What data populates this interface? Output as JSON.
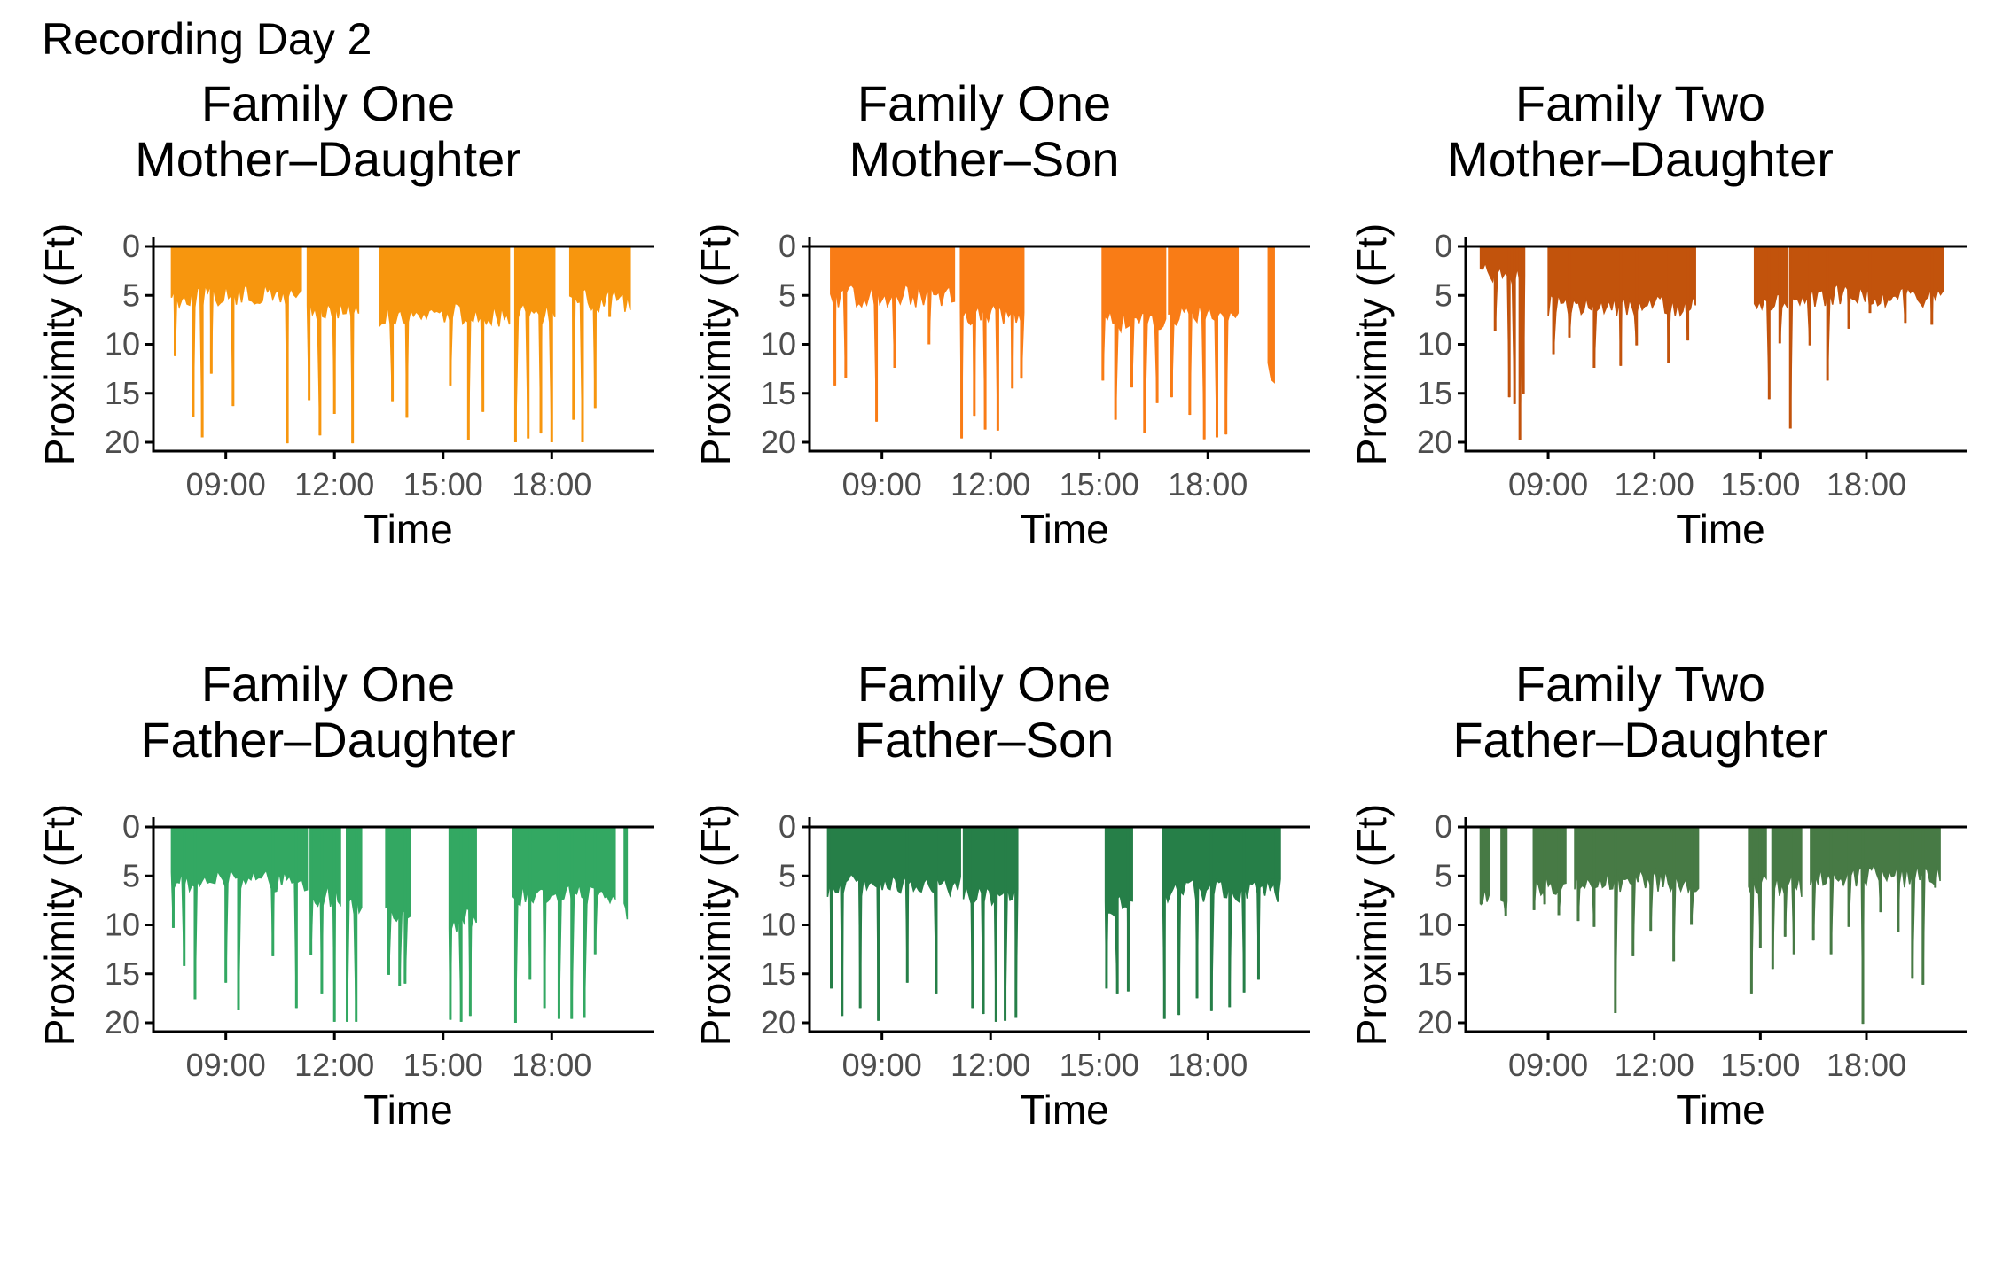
{
  "page_title": "Recording Day 2",
  "chart_data": [
    {
      "type": "bar",
      "family": "Family One",
      "pair": "Mother–Daughter",
      "xlabel": "Time",
      "ylabel": "Proximity (Ft)",
      "x_ticks": [
        "09:00",
        "12:00",
        "15:00",
        "18:00"
      ],
      "x_range": [
        "07:00",
        "20:50"
      ],
      "y_ticks": [
        0,
        5,
        10,
        15,
        20
      ],
      "ylim": [
        0,
        21
      ],
      "y_reversed": true,
      "color": "#F7960E",
      "segments": [
        {
          "start": "07:30",
          "end": "11:05",
          "base": 5.0,
          "spikes": [
            [
              7.6,
              11.2
            ],
            [
              8.1,
              17.4
            ],
            [
              8.35,
              19.5
            ],
            [
              8.6,
              13
            ],
            [
              9.2,
              16.3
            ],
            [
              10.7,
              20.1
            ]
          ]
        },
        {
          "start": "11:15",
          "end": "12:40",
          "base": 6.5,
          "spikes": [
            [
              11.3,
              15.7
            ],
            [
              11.6,
              19.3
            ],
            [
              12.0,
              17.1
            ],
            [
              12.5,
              20.1
            ]
          ]
        },
        {
          "start": "13:15",
          "end": "16:50",
          "base": 7.0,
          "spikes": [
            [
              13.6,
              15.8
            ],
            [
              14.0,
              17.5
            ],
            [
              15.2,
              14.2
            ],
            [
              15.7,
              19.8
            ],
            [
              16.1,
              16.9
            ]
          ]
        },
        {
          "start": "17:00",
          "end": "18:05",
          "base": 7.0,
          "spikes": [
            [
              17.0,
              20.0
            ],
            [
              17.35,
              19.6
            ],
            [
              17.7,
              19.1
            ],
            [
              18.0,
              20.0
            ]
          ]
        },
        {
          "start": "18:30",
          "end": "20:10",
          "base": 5.5,
          "spikes": [
            [
              18.6,
              17.7
            ],
            [
              18.85,
              20.0
            ],
            [
              19.2,
              16.5
            ],
            [
              19.6,
              7.2
            ],
            [
              19.95,
              3.9
            ]
          ]
        }
      ]
    },
    {
      "type": "bar",
      "family": "Family One",
      "pair": "Mother–Son",
      "xlabel": "Time",
      "ylabel": "Proximity (Ft)",
      "x_ticks": [
        "09:00",
        "12:00",
        "15:00",
        "18:00"
      ],
      "x_range": [
        "07:00",
        "20:50"
      ],
      "y_ticks": [
        0,
        5,
        10,
        15,
        20
      ],
      "ylim": [
        0,
        21
      ],
      "y_reversed": true,
      "color": "#F97C16",
      "segments": [
        {
          "start": "07:35",
          "end": "11:00",
          "base": 5.0,
          "spikes": [
            [
              7.7,
              14.2
            ],
            [
              8.0,
              13.4
            ],
            [
              8.85,
              17.9
            ],
            [
              9.35,
              12.4
            ],
            [
              10.3,
              10.0
            ]
          ]
        },
        {
          "start": "11:10",
          "end": "12:55",
          "base": 7.0,
          "spikes": [
            [
              11.2,
              19.6
            ],
            [
              11.55,
              17.3
            ],
            [
              11.85,
              18.7
            ],
            [
              12.2,
              18.8
            ],
            [
              12.6,
              14.5
            ],
            [
              12.85,
              13.5
            ]
          ]
        },
        {
          "start": "15:05",
          "end": "16:50",
          "base": 7.5,
          "spikes": [
            [
              15.1,
              13.7
            ],
            [
              15.45,
              17.7
            ],
            [
              15.9,
              14.4
            ],
            [
              16.25,
              19.0
            ],
            [
              16.6,
              16.0
            ]
          ]
        },
        {
          "start": "16:55",
          "end": "18:50",
          "base": 7.0,
          "spikes": [
            [
              17.0,
              15.4
            ],
            [
              17.5,
              17.2
            ],
            [
              17.9,
              19.7
            ],
            [
              18.25,
              19.5
            ],
            [
              18.5,
              19.2
            ]
          ]
        },
        {
          "start": "19:40",
          "end": "19:50",
          "base": 12.7,
          "spikes": []
        }
      ]
    },
    {
      "type": "bar",
      "family": "Family Two",
      "pair": "Mother–Daughter",
      "xlabel": "Time",
      "ylabel": "Proximity (Ft)",
      "x_ticks": [
        "09:00",
        "12:00",
        "15:00",
        "18:00"
      ],
      "x_range": [
        "06:40",
        "20:50"
      ],
      "y_ticks": [
        0,
        5,
        10,
        15,
        20
      ],
      "ylim": [
        0,
        21
      ],
      "y_reversed": true,
      "color": "#C2530C",
      "segments": [
        {
          "start": "07:05",
          "end": "08:20",
          "base": 2.8,
          "spikes": [
            [
              7.5,
              8.6
            ],
            [
              7.9,
              15.4
            ],
            [
              8.05,
              16.1
            ],
            [
              8.2,
              19.8
            ],
            [
              8.3,
              15.1
            ]
          ]
        },
        {
          "start": "09:00",
          "end": "13:10",
          "base": 6.0,
          "spikes": [
            [
              9.15,
              11.0
            ],
            [
              9.6,
              9.3
            ],
            [
              10.3,
              12.4
            ],
            [
              11.05,
              12.2
            ],
            [
              11.5,
              10.1
            ],
            [
              12.4,
              11.9
            ],
            [
              12.95,
              9.6
            ]
          ]
        },
        {
          "start": "14:50",
          "end": "15:45",
          "base": 5.5,
          "spikes": [
            [
              15.25,
              15.6
            ],
            [
              15.55,
              9.9
            ]
          ]
        },
        {
          "start": "15:50",
          "end": "20:10",
          "base": 5.0,
          "spikes": [
            [
              15.85,
              18.6
            ],
            [
              16.4,
              10.1
            ],
            [
              16.9,
              13.7
            ],
            [
              17.5,
              8.4
            ],
            [
              18.1,
              6.8
            ],
            [
              19.1,
              7.8
            ],
            [
              19.85,
              8.0
            ]
          ]
        }
      ]
    },
    {
      "type": "bar",
      "family": "Family One",
      "pair": "Father–Daughter",
      "xlabel": "Time",
      "ylabel": "Proximity (Ft)",
      "x_ticks": [
        "09:00",
        "12:00",
        "15:00",
        "18:00"
      ],
      "x_range": [
        "07:00",
        "20:50"
      ],
      "y_ticks": [
        0,
        5,
        10,
        15,
        20
      ],
      "ylim": [
        0,
        21
      ],
      "y_reversed": true,
      "color": "#33A862",
      "segments": [
        {
          "start": "07:30",
          "end": "11:15",
          "base": 5.5,
          "spikes": [
            [
              7.55,
              10.3
            ],
            [
              7.85,
              14.2
            ],
            [
              8.15,
              17.6
            ],
            [
              9.0,
              15.9
            ],
            [
              9.35,
              18.7
            ],
            [
              10.3,
              13.2
            ],
            [
              10.95,
              18.5
            ]
          ]
        },
        {
          "start": "11:20",
          "end": "12:10",
          "base": 7.0,
          "spikes": [
            [
              11.35,
              13.1
            ],
            [
              11.65,
              17.0
            ],
            [
              12.0,
              19.9
            ]
          ]
        },
        {
          "start": "12:20",
          "end": "12:45",
          "base": 8.0,
          "spikes": [
            [
              12.35,
              19.9
            ],
            [
              12.6,
              19.9
            ]
          ]
        },
        {
          "start": "13:25",
          "end": "14:05",
          "base": 9.0,
          "spikes": [
            [
              13.5,
              15.1
            ],
            [
              13.8,
              16.2
            ],
            [
              13.95,
              16.0
            ]
          ]
        },
        {
          "start": "15:10",
          "end": "15:55",
          "base": 9.5,
          "spikes": [
            [
              15.2,
              19.7
            ],
            [
              15.5,
              19.9
            ],
            [
              15.75,
              19.3
            ]
          ]
        },
        {
          "start": "16:55",
          "end": "19:45",
          "base": 7.0,
          "spikes": [
            [
              17.0,
              20.0
            ],
            [
              17.4,
              15.6
            ],
            [
              17.8,
              18.5
            ],
            [
              18.2,
              19.6
            ],
            [
              18.55,
              19.6
            ],
            [
              18.9,
              19.5
            ],
            [
              19.2,
              13.0
            ]
          ]
        },
        {
          "start": "20:00",
          "end": "20:05",
          "base": 8.5,
          "spikes": []
        }
      ]
    },
    {
      "type": "bar",
      "family": "Family One",
      "pair": "Father–Son",
      "xlabel": "Time",
      "ylabel": "Proximity (Ft)",
      "x_ticks": [
        "09:00",
        "12:00",
        "15:00",
        "18:00"
      ],
      "x_range": [
        "07:00",
        "20:50"
      ],
      "y_ticks": [
        0,
        5,
        10,
        15,
        20
      ],
      "ylim": [
        0,
        21
      ],
      "y_reversed": true,
      "color": "#267F48",
      "segments": [
        {
          "start": "07:30",
          "end": "11:10",
          "base": 6.0,
          "spikes": [
            [
              7.6,
              16.5
            ],
            [
              7.9,
              19.3
            ],
            [
              8.4,
              18.5
            ],
            [
              8.9,
              19.8
            ],
            [
              9.7,
              15.9
            ],
            [
              10.5,
              17.0
            ]
          ]
        },
        {
          "start": "11:15",
          "end": "12:45",
          "base": 7.0,
          "spikes": [
            [
              11.5,
              18.5
            ],
            [
              11.8,
              19.1
            ],
            [
              12.15,
              19.9
            ],
            [
              12.4,
              19.8
            ],
            [
              12.7,
              19.5
            ]
          ]
        },
        {
          "start": "15:10",
          "end": "15:55",
          "base": 8.0,
          "spikes": [
            [
              15.2,
              16.5
            ],
            [
              15.5,
              17.0
            ],
            [
              15.8,
              16.8
            ]
          ]
        },
        {
          "start": "16:45",
          "end": "20:00",
          "base": 6.5,
          "spikes": [
            [
              16.8,
              19.6
            ],
            [
              17.2,
              19.2
            ],
            [
              17.7,
              17.5
            ],
            [
              18.1,
              18.8
            ],
            [
              18.6,
              18.4
            ],
            [
              19.0,
              16.9
            ],
            [
              19.4,
              15.6
            ],
            [
              19.8,
              5.3
            ]
          ]
        }
      ]
    },
    {
      "type": "bar",
      "family": "Family Two",
      "pair": "Father–Daughter",
      "xlabel": "Time",
      "ylabel": "Proximity (Ft)",
      "x_ticks": [
        "09:00",
        "12:00",
        "15:00",
        "18:00"
      ],
      "x_range": [
        "06:40",
        "20:50"
      ],
      "y_ticks": [
        0,
        5,
        10,
        15,
        20
      ],
      "ylim": [
        0,
        21
      ],
      "y_reversed": true,
      "color": "#477A45",
      "segments": [
        {
          "start": "07:05",
          "end": "07:20",
          "base": 7.0,
          "spikes": [
            [
              7.1,
              7.9
            ]
          ]
        },
        {
          "start": "07:40",
          "end": "07:50",
          "base": 7.5,
          "spikes": [
            [
              7.8,
              9.1
            ]
          ]
        },
        {
          "start": "08:35",
          "end": "09:30",
          "base": 6.0,
          "spikes": [
            [
              8.6,
              8.5
            ],
            [
              8.9,
              7.9
            ],
            [
              9.3,
              9.0
            ]
          ]
        },
        {
          "start": "09:45",
          "end": "13:15",
          "base": 5.5,
          "spikes": [
            [
              9.85,
              9.6
            ],
            [
              10.3,
              10.2
            ],
            [
              10.9,
              19.0
            ],
            [
              11.4,
              13.2
            ],
            [
              11.9,
              10.6
            ],
            [
              12.55,
              13.7
            ],
            [
              13.05,
              10.0
            ]
          ]
        },
        {
          "start": "14:40",
          "end": "15:10",
          "base": 6.0,
          "spikes": [
            [
              14.75,
              17.0
            ],
            [
              15.0,
              12.4
            ]
          ]
        },
        {
          "start": "15:20",
          "end": "16:10",
          "base": 6.0,
          "spikes": [
            [
              15.35,
              14.5
            ],
            [
              15.7,
              11.2
            ],
            [
              15.95,
              13.0
            ]
          ]
        },
        {
          "start": "16:25",
          "end": "20:05",
          "base": 5.0,
          "spikes": [
            [
              16.5,
              11.6
            ],
            [
              17.0,
              13.0
            ],
            [
              17.5,
              10.2
            ],
            [
              17.9,
              20.1
            ],
            [
              18.4,
              8.7
            ],
            [
              18.9,
              10.7
            ],
            [
              19.3,
              15.5
            ],
            [
              19.6,
              16.1
            ],
            [
              19.95,
              6.2
            ]
          ]
        }
      ]
    }
  ]
}
